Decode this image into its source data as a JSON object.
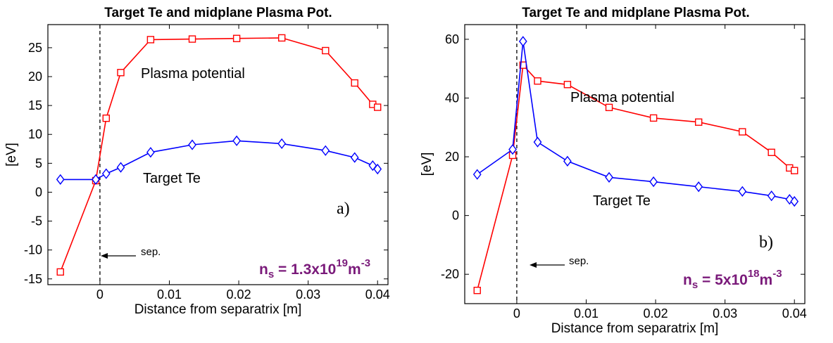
{
  "chart_data": [
    {
      "type": "line",
      "title": "Target Te and midplane Plasma Pot.",
      "xlabel": "Distance from separatrix [m]",
      "ylabel": "[eV]",
      "xlim": [
        -0.0075,
        0.0415
      ],
      "ylim": [
        -16,
        29
      ],
      "xticks": [
        0,
        0.01,
        0.02,
        0.03,
        0.04
      ],
      "xtick_labels": [
        "0",
        "0.01",
        "0.02",
        "0.03",
        "0.04"
      ],
      "yticks": [
        -15,
        -10,
        -5,
        0,
        5,
        10,
        15,
        20,
        25
      ],
      "ytick_labels": [
        "-15",
        "-10",
        "-5",
        "0",
        "5",
        "10",
        "15",
        "20",
        "25"
      ],
      "grid": false,
      "panel_label": "a)",
      "separatrix_x": 0,
      "separatrix_label": "sep.",
      "density_label": {
        "prefix": "n",
        "sub": "s",
        "mid": " = 1.3x10",
        "exp": "19",
        "unit": "m",
        "unit_exp": "-3"
      },
      "series": [
        {
          "name": "Plasma potential",
          "color": "#ff0000",
          "marker": "square",
          "x": [
            -0.0057,
            -0.0006,
            0.0009,
            0.003,
            0.0073,
            0.0133,
            0.0197,
            0.0262,
            0.0325,
            0.0367,
            0.0393,
            0.04
          ],
          "y": [
            -13.8,
            2.0,
            12.8,
            20.7,
            26.4,
            26.5,
            26.6,
            26.7,
            24.5,
            18.9,
            15.2,
            14.7
          ]
        },
        {
          "name": "Target Te",
          "color": "#0000ff",
          "marker": "diamond",
          "x": [
            -0.0057,
            -0.0006,
            0.0009,
            0.003,
            0.0073,
            0.0133,
            0.0197,
            0.0262,
            0.0325,
            0.0367,
            0.0393,
            0.04
          ],
          "y": [
            2.2,
            2.2,
            3.2,
            4.3,
            6.9,
            8.2,
            8.9,
            8.4,
            7.2,
            6.0,
            4.6,
            4.0
          ]
        }
      ]
    },
    {
      "type": "line",
      "title": "Target Te and midplane Plasma Pot.",
      "xlabel": "Distance from separatrix [m]",
      "ylabel": "[eV]",
      "xlim": [
        -0.0075,
        0.0415
      ],
      "ylim": [
        -30,
        65
      ],
      "xticks": [
        0,
        0.01,
        0.02,
        0.03,
        0.04
      ],
      "xtick_labels": [
        "0",
        "0.01",
        "0.02",
        "0.03",
        "0.04"
      ],
      "yticks": [
        -20,
        0,
        20,
        40,
        60
      ],
      "ytick_labels": [
        "-20",
        "0",
        "20",
        "40",
        "60"
      ],
      "grid": false,
      "panel_label": "b)",
      "separatrix_x": 0,
      "separatrix_label": "sep.",
      "density_label": {
        "prefix": "n",
        "sub": "s",
        "mid": " = 5x10",
        "exp": "18",
        "unit": "m",
        "unit_exp": "-3"
      },
      "series": [
        {
          "name": "Plasma potential",
          "color": "#ff0000",
          "marker": "square",
          "x": [
            -0.0057,
            -0.0006,
            0.0009,
            0.003,
            0.0073,
            0.0133,
            0.0197,
            0.0262,
            0.0325,
            0.0367,
            0.0393,
            0.04
          ],
          "y": [
            -25.5,
            20.5,
            51.2,
            45.8,
            44.6,
            36.8,
            33.2,
            31.8,
            28.5,
            21.5,
            16.2,
            15.3
          ]
        },
        {
          "name": "Target Te",
          "color": "#0000ff",
          "marker": "diamond",
          "x": [
            -0.0057,
            -0.0006,
            0.0009,
            0.003,
            0.0073,
            0.0133,
            0.0197,
            0.0262,
            0.0325,
            0.0367,
            0.0393,
            0.04
          ],
          "y": [
            14.0,
            22.5,
            59.3,
            25.0,
            18.5,
            13.0,
            11.5,
            9.8,
            8.2,
            6.7,
            5.5,
            4.8
          ]
        }
      ]
    }
  ]
}
